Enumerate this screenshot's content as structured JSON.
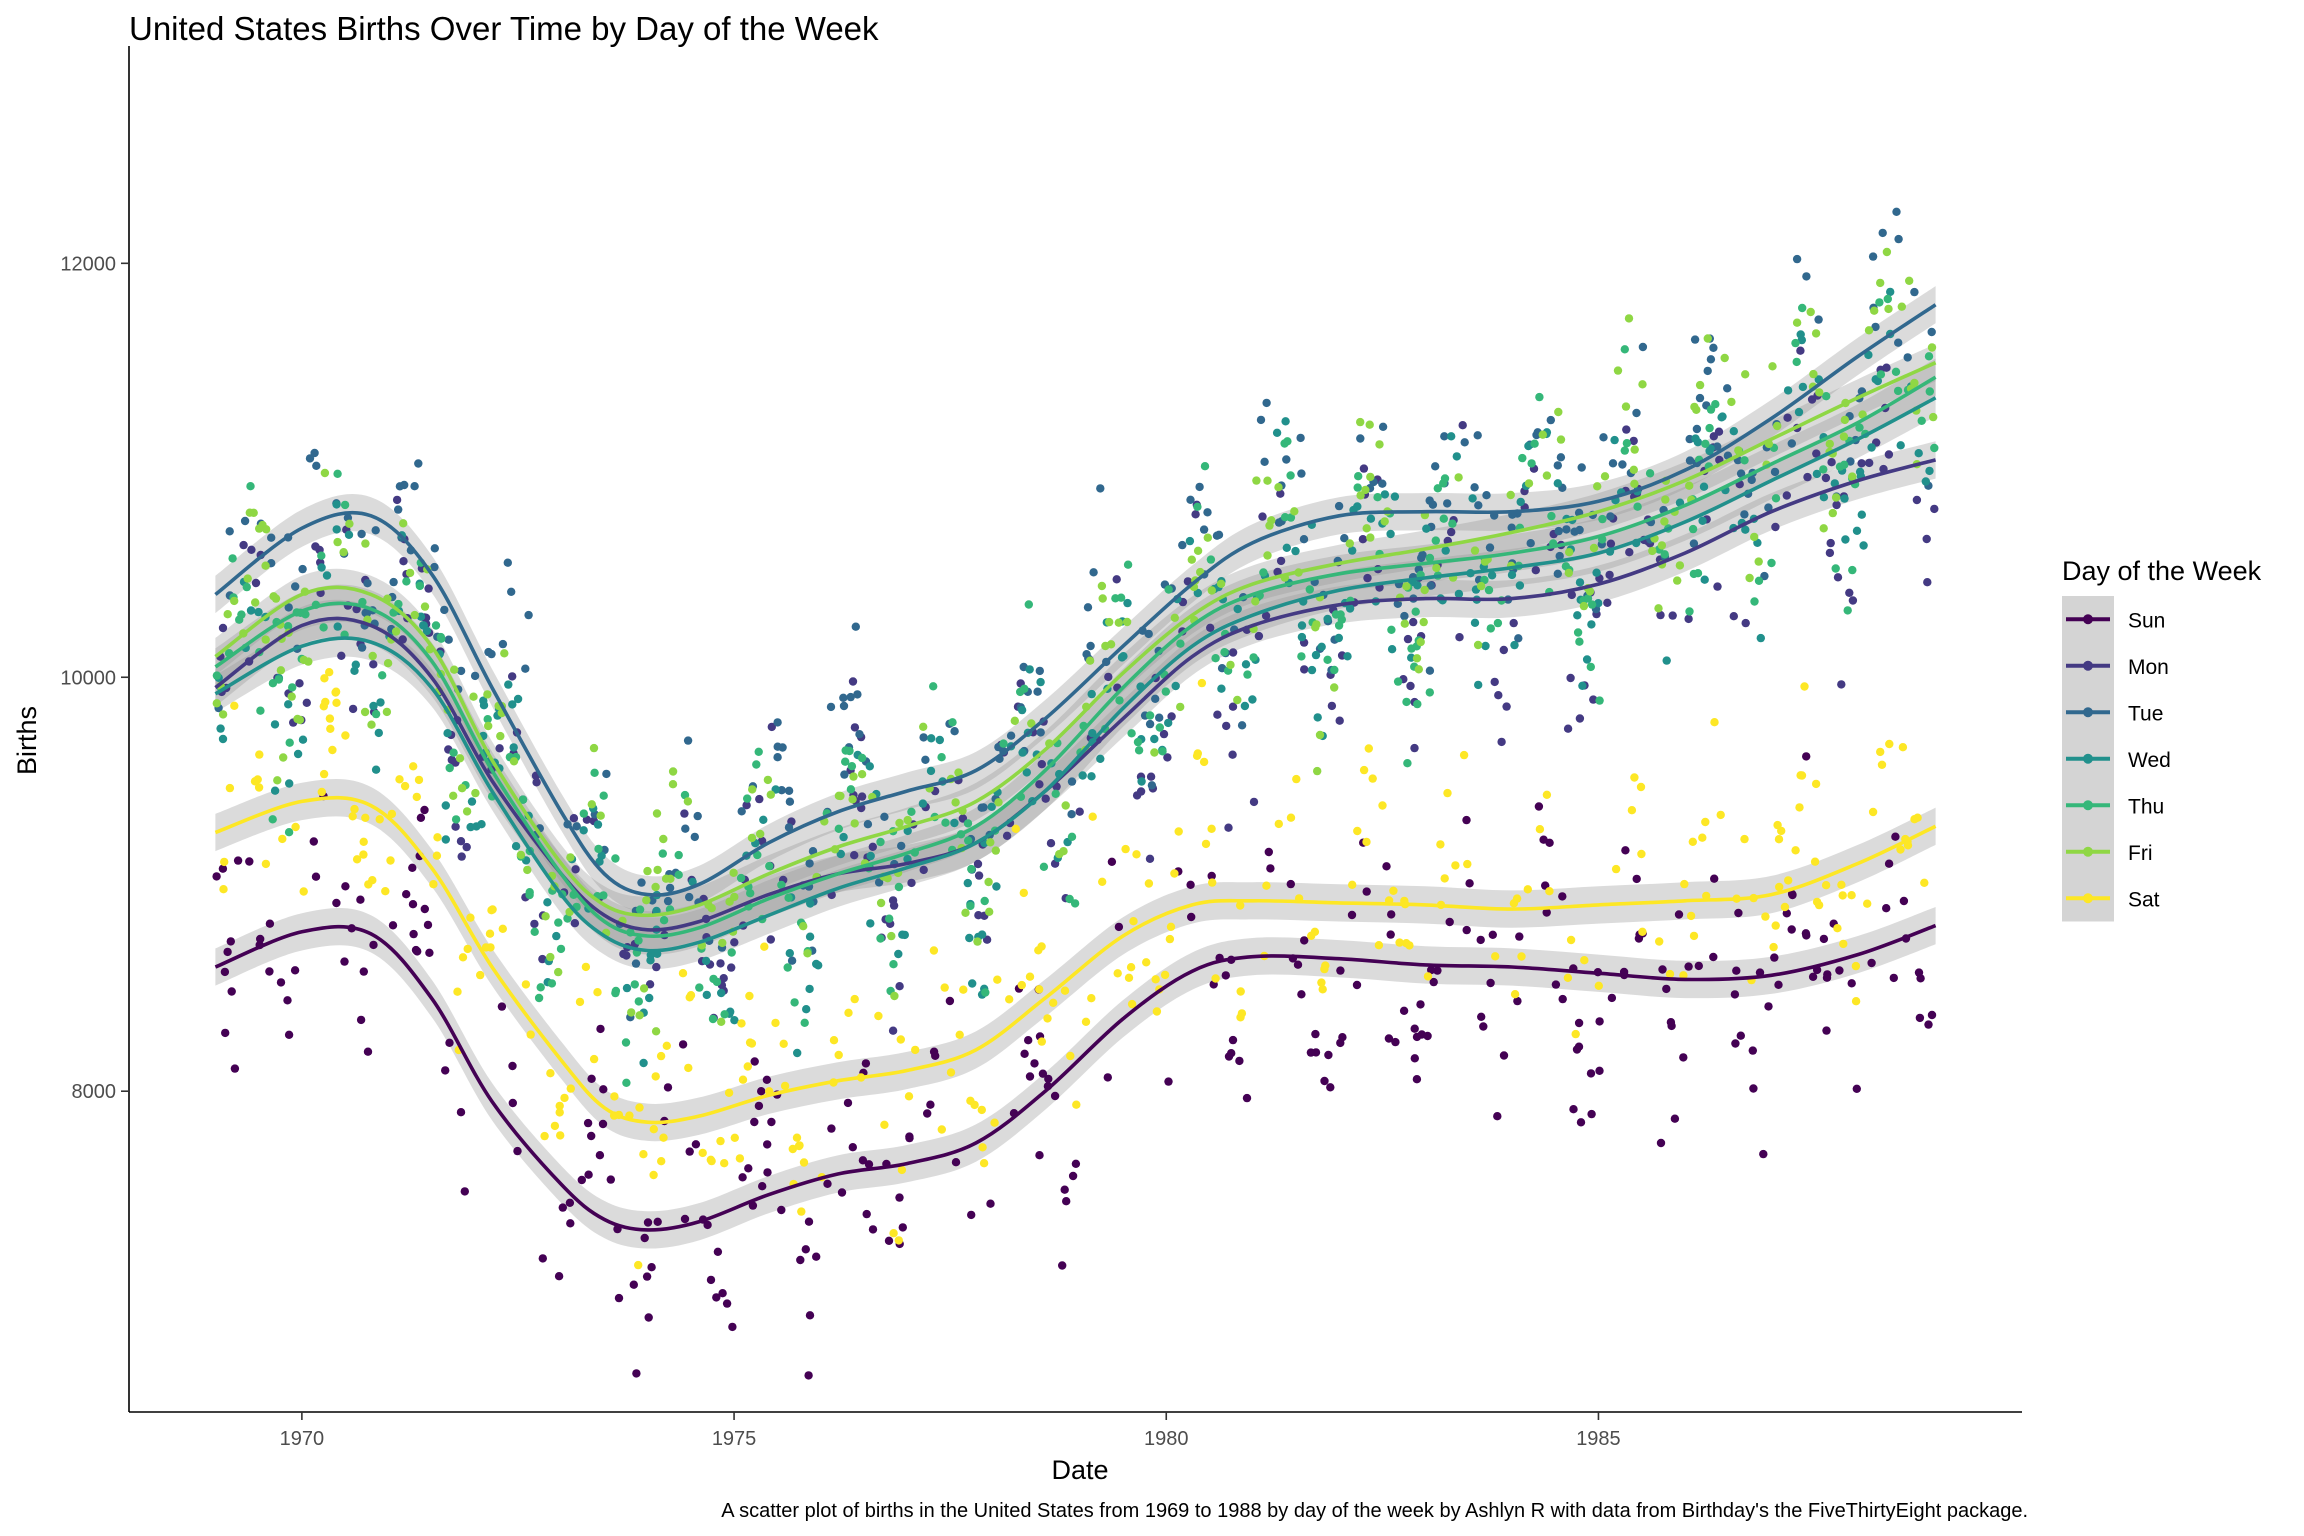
{
  "chart_data": {
    "type": "scatter",
    "title": "United States Births Over Time by Day of the Week",
    "xlabel": "Date",
    "ylabel": "Births",
    "caption": "A scatter plot of births in the United States from 1969 to 1988 by day of the week by Ashlyn R with data from Birthday's the FiveThirtyEight package.",
    "xlim": [
      1968.0,
      1989.9
    ],
    "ylim": [
      6450,
      13050
    ],
    "x_ticks": [
      1970,
      1975,
      1980,
      1985
    ],
    "y_ticks": [
      8000,
      10000,
      12000
    ],
    "x_tick_labels": [
      "1970",
      "1975",
      "1980",
      "1985"
    ],
    "y_tick_labels": [
      "8000",
      "10000",
      "12000"
    ],
    "legend": {
      "title": "Day of the Week",
      "position": "right"
    },
    "grid": false,
    "series": [
      {
        "name": "Sun",
        "color": "#440154",
        "trend": [
          [
            1969.0,
            8600
          ],
          [
            1970.0,
            8770
          ],
          [
            1970.8,
            8760
          ],
          [
            1971.5,
            8450
          ],
          [
            1972.2,
            7950
          ],
          [
            1973.0,
            7550
          ],
          [
            1973.5,
            7380
          ],
          [
            1974.0,
            7330
          ],
          [
            1974.6,
            7370
          ],
          [
            1975.4,
            7500
          ],
          [
            1976.2,
            7600
          ],
          [
            1977.0,
            7650
          ],
          [
            1977.8,
            7750
          ],
          [
            1978.6,
            8000
          ],
          [
            1979.5,
            8350
          ],
          [
            1980.3,
            8580
          ],
          [
            1981.0,
            8650
          ],
          [
            1982.0,
            8640
          ],
          [
            1983.0,
            8610
          ],
          [
            1984.0,
            8600
          ],
          [
            1985.0,
            8570
          ],
          [
            1986.0,
            8540
          ],
          [
            1987.0,
            8560
          ],
          [
            1988.0,
            8660
          ],
          [
            1988.9,
            8800
          ]
        ]
      },
      {
        "name": "Mon",
        "color": "#443A83",
        "trend": [
          [
            1969.0,
            9950
          ],
          [
            1970.0,
            10250
          ],
          [
            1970.8,
            10250
          ],
          [
            1971.5,
            10000
          ],
          [
            1972.2,
            9500
          ],
          [
            1973.0,
            9050
          ],
          [
            1973.5,
            8850
          ],
          [
            1974.0,
            8780
          ],
          [
            1974.6,
            8820
          ],
          [
            1975.4,
            8950
          ],
          [
            1976.2,
            9050
          ],
          [
            1977.0,
            9100
          ],
          [
            1977.8,
            9200
          ],
          [
            1978.6,
            9450
          ],
          [
            1979.5,
            9800
          ],
          [
            1980.3,
            10100
          ],
          [
            1981.0,
            10250
          ],
          [
            1982.0,
            10350
          ],
          [
            1983.0,
            10380
          ],
          [
            1984.0,
            10380
          ],
          [
            1985.0,
            10450
          ],
          [
            1986.0,
            10600
          ],
          [
            1987.0,
            10800
          ],
          [
            1988.0,
            10950
          ],
          [
            1988.9,
            11050
          ]
        ]
      },
      {
        "name": "Tue",
        "color": "#31688E",
        "trend": [
          [
            1969.0,
            10400
          ],
          [
            1970.0,
            10720
          ],
          [
            1970.8,
            10780
          ],
          [
            1971.5,
            10500
          ],
          [
            1972.2,
            9950
          ],
          [
            1973.0,
            9350
          ],
          [
            1973.5,
            9050
          ],
          [
            1974.0,
            8950
          ],
          [
            1974.6,
            9000
          ],
          [
            1975.4,
            9200
          ],
          [
            1976.2,
            9350
          ],
          [
            1977.0,
            9450
          ],
          [
            1977.8,
            9550
          ],
          [
            1978.6,
            9800
          ],
          [
            1979.5,
            10150
          ],
          [
            1980.3,
            10450
          ],
          [
            1981.0,
            10650
          ],
          [
            1982.0,
            10780
          ],
          [
            1983.0,
            10800
          ],
          [
            1984.0,
            10800
          ],
          [
            1985.0,
            10850
          ],
          [
            1986.0,
            11000
          ],
          [
            1987.0,
            11250
          ],
          [
            1988.0,
            11550
          ],
          [
            1988.9,
            11800
          ]
        ]
      },
      {
        "name": "Wed",
        "color": "#21908C",
        "trend": [
          [
            1969.0,
            9920
          ],
          [
            1970.0,
            10150
          ],
          [
            1970.8,
            10170
          ],
          [
            1971.5,
            9950
          ],
          [
            1972.2,
            9450
          ],
          [
            1973.0,
            8950
          ],
          [
            1973.5,
            8750
          ],
          [
            1974.0,
            8680
          ],
          [
            1974.6,
            8720
          ],
          [
            1975.4,
            8850
          ],
          [
            1976.2,
            8980
          ],
          [
            1977.0,
            9080
          ],
          [
            1977.8,
            9200
          ],
          [
            1978.6,
            9450
          ],
          [
            1979.5,
            9850
          ],
          [
            1980.3,
            10150
          ],
          [
            1981.0,
            10300
          ],
          [
            1982.0,
            10420
          ],
          [
            1983.0,
            10480
          ],
          [
            1984.0,
            10530
          ],
          [
            1985.0,
            10600
          ],
          [
            1986.0,
            10750
          ],
          [
            1987.0,
            10950
          ],
          [
            1988.0,
            11150
          ],
          [
            1988.9,
            11350
          ]
        ]
      },
      {
        "name": "Thu",
        "color": "#35B779",
        "trend": [
          [
            1969.0,
            10050
          ],
          [
            1970.0,
            10320
          ],
          [
            1970.8,
            10330
          ],
          [
            1971.5,
            10080
          ],
          [
            1972.2,
            9550
          ],
          [
            1973.0,
            9050
          ],
          [
            1973.5,
            8820
          ],
          [
            1974.0,
            8750
          ],
          [
            1974.6,
            8790
          ],
          [
            1975.4,
            8930
          ],
          [
            1976.2,
            9050
          ],
          [
            1977.0,
            9150
          ],
          [
            1977.8,
            9280
          ],
          [
            1978.6,
            9550
          ],
          [
            1979.5,
            9950
          ],
          [
            1980.3,
            10250
          ],
          [
            1981.0,
            10400
          ],
          [
            1982.0,
            10500
          ],
          [
            1983.0,
            10550
          ],
          [
            1984.0,
            10600
          ],
          [
            1985.0,
            10680
          ],
          [
            1986.0,
            10830
          ],
          [
            1987.0,
            11030
          ],
          [
            1988.0,
            11230
          ],
          [
            1988.9,
            11450
          ]
        ]
      },
      {
        "name": "Fri",
        "color": "#8FD744",
        "trend": [
          [
            1969.0,
            10100
          ],
          [
            1970.0,
            10400
          ],
          [
            1970.8,
            10400
          ],
          [
            1971.5,
            10150
          ],
          [
            1972.2,
            9600
          ],
          [
            1973.0,
            9100
          ],
          [
            1973.5,
            8900
          ],
          [
            1974.0,
            8850
          ],
          [
            1974.6,
            8900
          ],
          [
            1975.4,
            9050
          ],
          [
            1976.2,
            9180
          ],
          [
            1977.0,
            9280
          ],
          [
            1977.8,
            9400
          ],
          [
            1978.6,
            9650
          ],
          [
            1979.5,
            10020
          ],
          [
            1980.3,
            10300
          ],
          [
            1981.0,
            10450
          ],
          [
            1982.0,
            10550
          ],
          [
            1983.0,
            10620
          ],
          [
            1984.0,
            10700
          ],
          [
            1985.0,
            10800
          ],
          [
            1986.0,
            10950
          ],
          [
            1987.0,
            11150
          ],
          [
            1988.0,
            11350
          ],
          [
            1988.9,
            11520
          ]
        ]
      },
      {
        "name": "Sat",
        "color": "#FDE725",
        "trend": [
          [
            1969.0,
            9250
          ],
          [
            1970.0,
            9400
          ],
          [
            1970.8,
            9380
          ],
          [
            1971.5,
            9080
          ],
          [
            1972.2,
            8600
          ],
          [
            1973.0,
            8150
          ],
          [
            1973.5,
            7920
          ],
          [
            1974.0,
            7850
          ],
          [
            1974.6,
            7880
          ],
          [
            1975.4,
            7980
          ],
          [
            1976.2,
            8050
          ],
          [
            1977.0,
            8100
          ],
          [
            1977.8,
            8200
          ],
          [
            1978.6,
            8450
          ],
          [
            1979.5,
            8750
          ],
          [
            1980.3,
            8900
          ],
          [
            1981.0,
            8920
          ],
          [
            1982.0,
            8910
          ],
          [
            1983.0,
            8900
          ],
          [
            1984.0,
            8880
          ],
          [
            1985.0,
            8900
          ],
          [
            1986.0,
            8920
          ],
          [
            1987.0,
            8950
          ],
          [
            1988.0,
            9100
          ],
          [
            1988.9,
            9280
          ]
        ]
      }
    ]
  }
}
